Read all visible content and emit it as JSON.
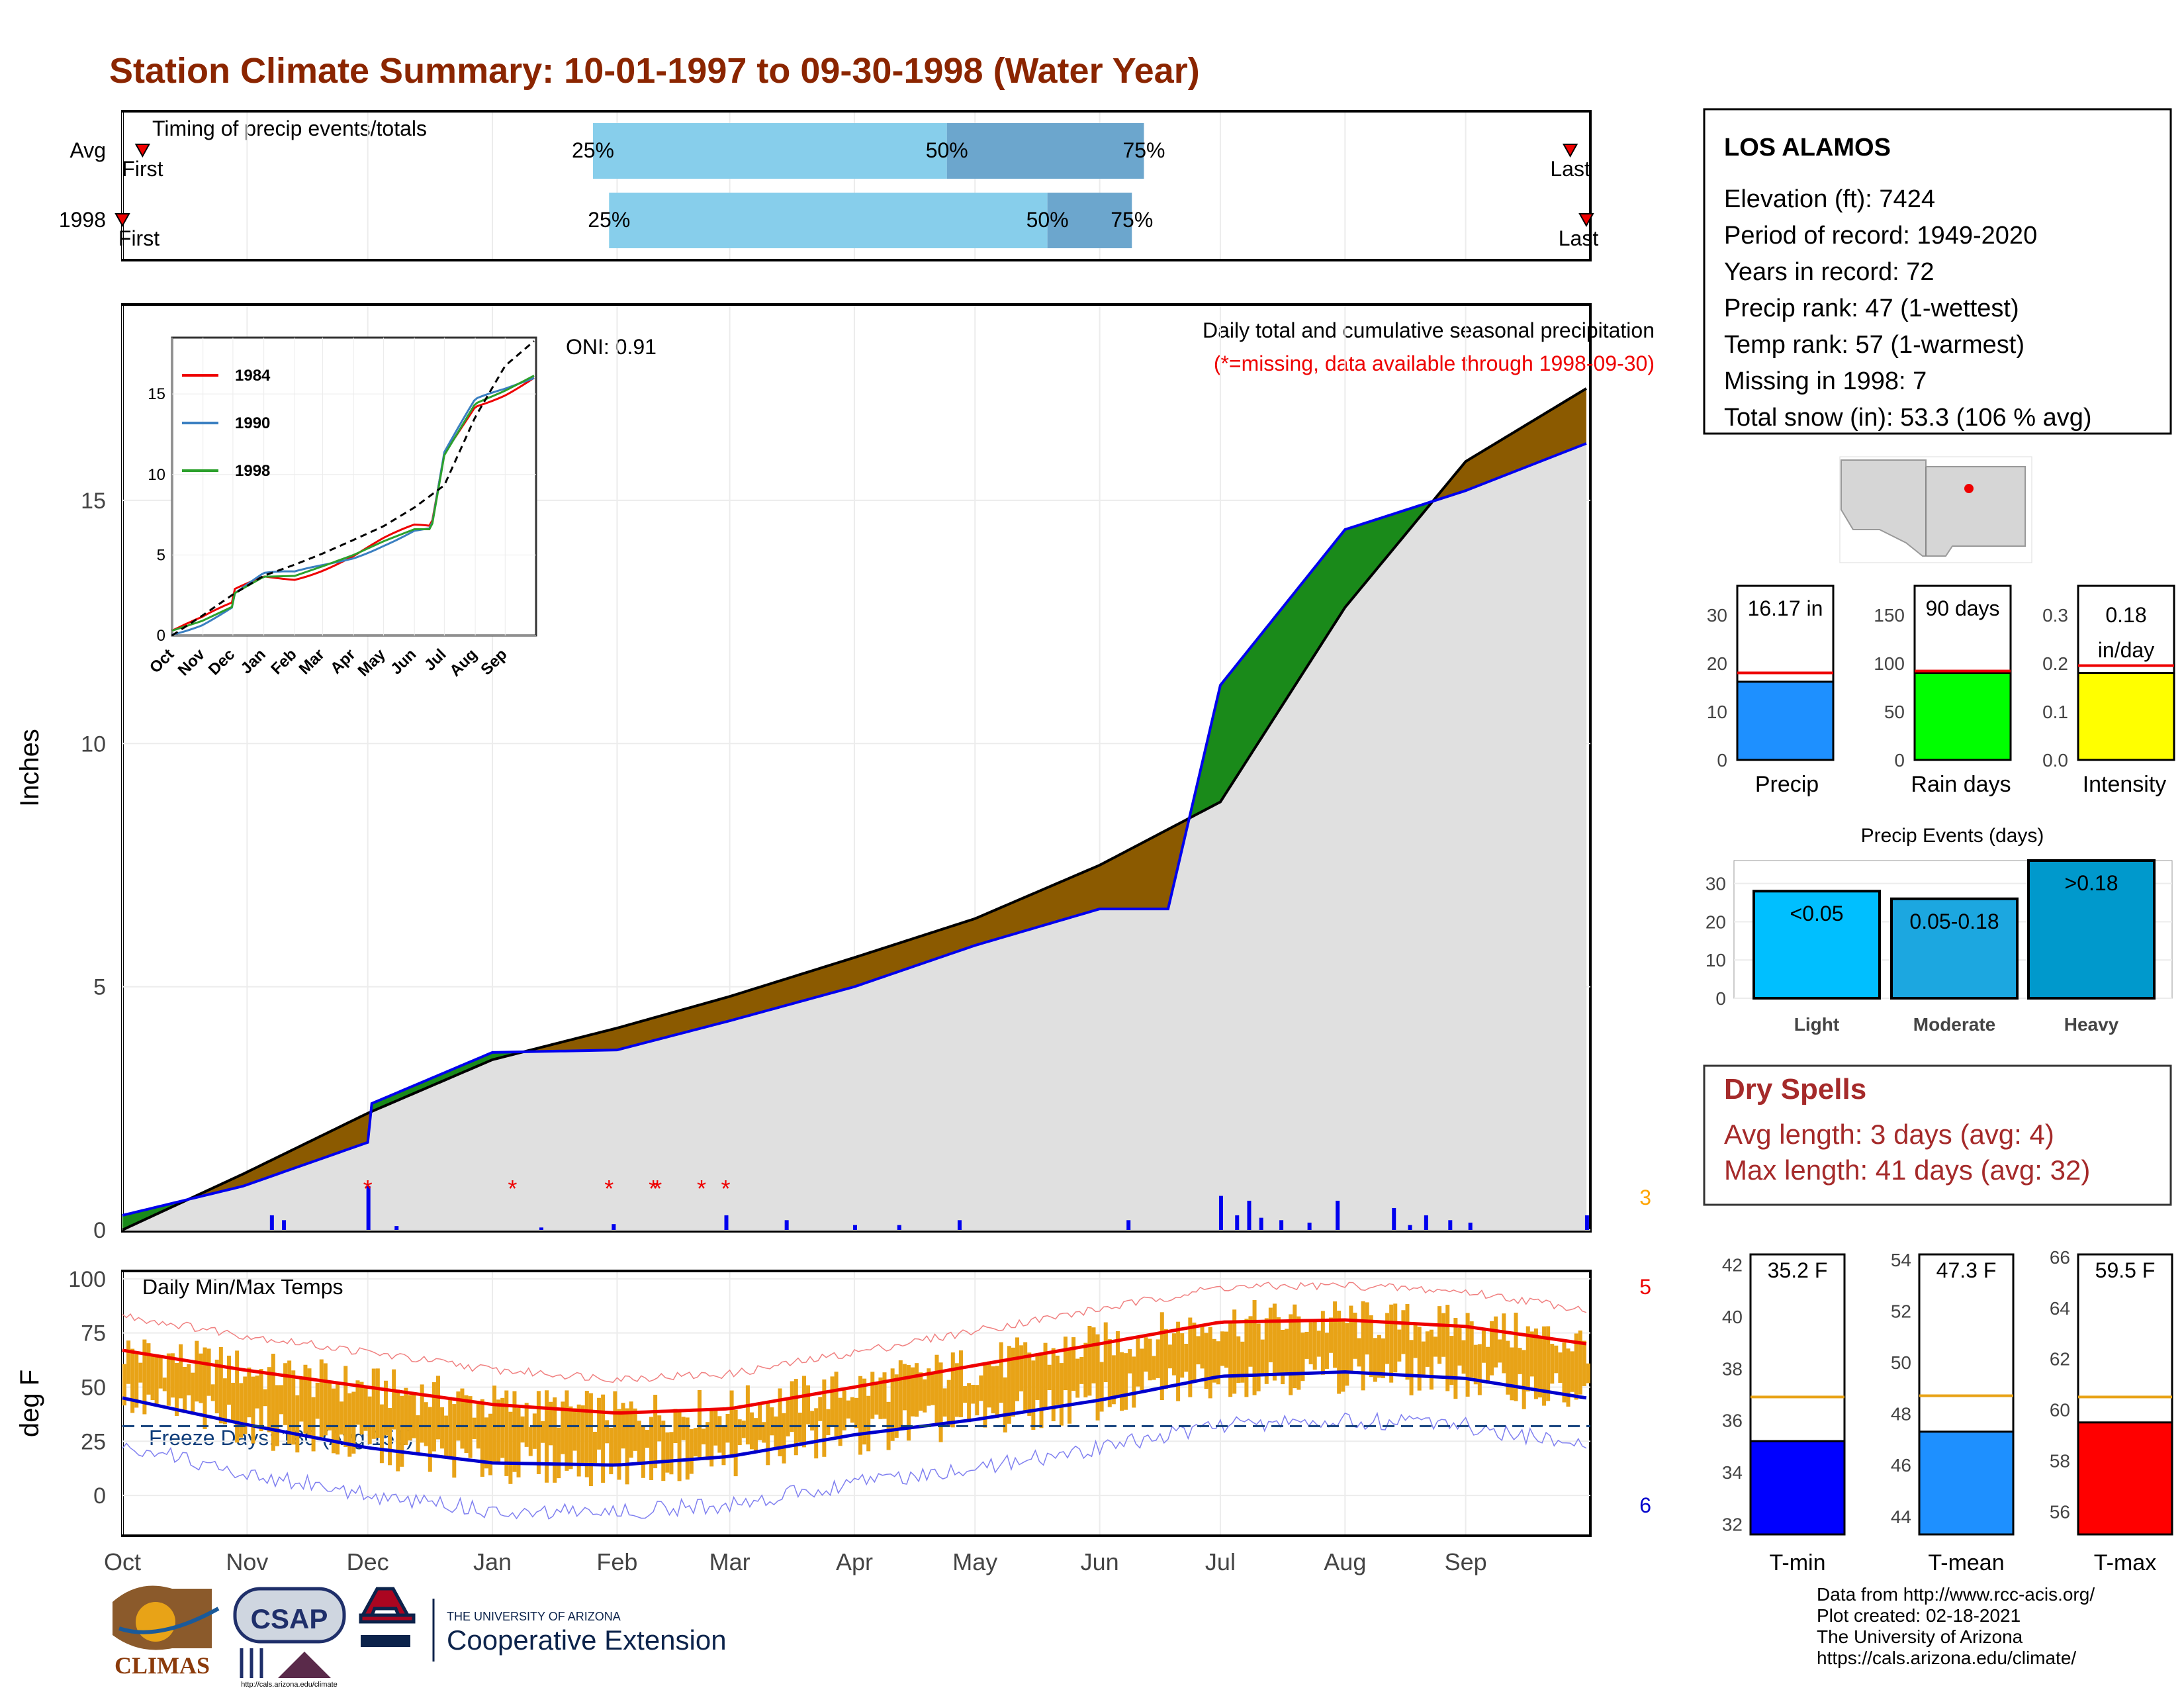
{
  "title": "Station Climate Summary: 10-01-1997 to 09-30-1998 (Water Year)",
  "colors": {
    "title": "#8B2500",
    "brown": "#8B5A00",
    "green": "#1a8a1a",
    "blue": "#0000EE",
    "lightblue": "#87CEEB",
    "midblue": "#6CA6CD",
    "orange": "#E8A317",
    "red": "#EE0000",
    "drySpell": "#A52A2A"
  },
  "months": [
    "Oct",
    "Nov",
    "Dec",
    "Jan",
    "Feb",
    "Mar",
    "Apr",
    "May",
    "Jun",
    "Jul",
    "Aug",
    "Sep"
  ],
  "timing": {
    "label": "Timing of precip events/totals",
    "rows": [
      {
        "name": "Avg",
        "first": "First",
        "last": "Last",
        "first_day": 5,
        "last_day": 360,
        "p25": "25%",
        "p50": "50%",
        "p75": "75%",
        "d25": 117,
        "d50": 205,
        "d75": 254
      },
      {
        "name": "1998",
        "first": "First",
        "last": "Last",
        "first_day": 0,
        "last_day": 364,
        "p25": "25%",
        "p50": "50%",
        "p75": "75%",
        "d25": 121,
        "d50": 230,
        "d75": 251
      }
    ]
  },
  "station": {
    "name": "LOS ALAMOS",
    "lines": [
      "Elevation (ft): 7424",
      "Period of record: 1949-2020",
      "Years in record: 72",
      "Precip rank: 47 (1-wettest)",
      "Temp rank: 57 (1-warmest)",
      "Missing in 1998: 7",
      "Total snow (in): 53.3 (106 % avg)"
    ]
  },
  "precip_panel": {
    "ylabel": "Inches",
    "title": "Daily total and cumulative seasonal precipitation",
    "missing_note": "(*=missing, data available through 1998-09-30)",
    "oni": "ONI: 0.91",
    "corner_count": "3",
    "yticks": [
      0,
      5,
      10,
      15
    ],
    "ylim": [
      0,
      19
    ]
  },
  "inset": {
    "legend": [
      "1984",
      "1990",
      "1998"
    ],
    "legend_colors": [
      "#EE0000",
      "#3A7FC1",
      "#2CA02C"
    ],
    "yticks": [
      0,
      5,
      10,
      15
    ],
    "months": [
      "Oct",
      "Nov",
      "Dec",
      "Jan",
      "Feb",
      "Mar",
      "Apr",
      "May",
      "Jun",
      "Jul",
      "Aug",
      "Sep"
    ]
  },
  "temp_panel": {
    "title": "Daily Min/Max Temps",
    "ylabel": "deg F",
    "freeze": "Freeze Days: 180 (Avg:151)",
    "count_max": "5",
    "count_min": "6",
    "yticks": [
      0,
      25,
      50,
      75,
      100
    ],
    "ylim": [
      -18,
      103
    ]
  },
  "small_bars": {
    "precip": {
      "label": "Precip",
      "value_label": "16.17 in",
      "value": 16.17,
      "avg": 18.0,
      "ylim": [
        0,
        36
      ],
      "yticks": [
        0,
        10,
        20,
        30
      ],
      "color": "#1E90FF"
    },
    "rain_days": {
      "label": "Rain days",
      "value_label": "90 days",
      "value": 90,
      "avg": 92,
      "ylim": [
        0,
        180
      ],
      "yticks": [
        0,
        50,
        100,
        150
      ],
      "color": "#00FF00"
    },
    "intensity": {
      "label": "Intensity",
      "value_label_1": "0.18",
      "value_label_2": "in/day",
      "value": 0.18,
      "avg": 0.195,
      "ylim": [
        0,
        0.36
      ],
      "yticks": [
        "0.0",
        "0.1",
        "0.2",
        "0.3"
      ],
      "color": "#FFFF00"
    }
  },
  "precip_events": {
    "title": "Precip Events (days)",
    "yticks": [
      0,
      10,
      20,
      30
    ],
    "ylim": [
      0,
      36
    ],
    "bars": [
      {
        "label": "Light",
        "value_label": "<0.05",
        "value": 28,
        "color": "#00BFFF"
      },
      {
        "label": "Moderate",
        "value_label": "0.05-0.18",
        "value": 26,
        "color": "#1CA7E0"
      },
      {
        "label": "Heavy",
        "value_label": ">0.18",
        "value": 36,
        "color": "#0099CC"
      }
    ]
  },
  "dry_spells": {
    "title": "Dry Spells",
    "avg": "Avg length: 3 days (avg: 4)",
    "max": "Max length: 41 days (avg: 32)"
  },
  "temp_bars": [
    {
      "label": "T-min",
      "value_label": "35.2 F",
      "value": 35.2,
      "avg": 36.9,
      "ylim": [
        31.6,
        42.4
      ],
      "yticks": [
        32,
        34,
        36,
        38,
        40,
        42
      ],
      "color": "#0000FF"
    },
    {
      "label": "T-mean",
      "value_label": "47.3 F",
      "value": 47.3,
      "avg": 48.7,
      "ylim": [
        43.3,
        54.2
      ],
      "yticks": [
        44,
        46,
        48,
        50,
        52,
        54
      ],
      "color": "#1E90FF"
    },
    {
      "label": "T-max",
      "value_label": "59.5 F",
      "value": 59.5,
      "avg": 60.5,
      "ylim": [
        55.1,
        66.1
      ],
      "yticks": [
        56,
        58,
        60,
        62,
        64,
        66
      ],
      "color": "#FF0000"
    }
  ],
  "footer": {
    "lines": [
      "Data from http://www.rcc-acis.org/",
      "Plot created: 02-18-2021",
      "The University of Arizona",
      "https://cals.arizona.edu/climate/"
    ],
    "logo1": "CLIMAS",
    "logo2": "CSAP",
    "logo2_url": "http://cals.arizona.edu/climate",
    "logo3_top": "THE UNIVERSITY OF ARIZONA",
    "logo3_main": "Cooperative Extension"
  },
  "chart_data": {
    "type": "area",
    "title": "Daily total and cumulative seasonal precipitation",
    "ylabel": "Inches",
    "ylim": [
      0,
      19
    ],
    "series": [
      {
        "name": "cumulative",
        "x": [
          0,
          30,
          61,
          62,
          92,
          123,
          151,
          182,
          212,
          243,
          260,
          273,
          304,
          334,
          364
        ],
        "values": [
          0.3,
          0.9,
          1.8,
          2.6,
          3.65,
          3.7,
          4.3,
          5.0,
          5.85,
          6.6,
          6.6,
          11.2,
          14.4,
          15.2,
          16.17
        ]
      },
      {
        "x": [
          0,
          30,
          61,
          92,
          123,
          151,
          182,
          212,
          243,
          273,
          304,
          334,
          364
        ],
        "values": [
          0.0,
          1.15,
          2.4,
          3.5,
          4.15,
          4.8,
          5.6,
          6.4,
          7.5,
          8.8,
          12.8,
          15.8,
          17.3
        ]
      }
    ],
    "daily_bars": [
      {
        "x": 37,
        "v": 0.3
      },
      {
        "x": 40,
        "v": 0.2
      },
      {
        "x": 61,
        "v": 0.9
      },
      {
        "x": 68,
        "v": 0.08
      },
      {
        "x": 104,
        "v": 0.05
      },
      {
        "x": 122,
        "v": 0.12
      },
      {
        "x": 150,
        "v": 0.3
      },
      {
        "x": 165,
        "v": 0.2
      },
      {
        "x": 182,
        "v": 0.1
      },
      {
        "x": 193,
        "v": 0.1
      },
      {
        "x": 208,
        "v": 0.2
      },
      {
        "x": 250,
        "v": 0.2
      },
      {
        "x": 273,
        "v": 0.7
      },
      {
        "x": 277,
        "v": 0.3
      },
      {
        "x": 280,
        "v": 0.6
      },
      {
        "x": 283,
        "v": 0.25
      },
      {
        "x": 288,
        "v": 0.2
      },
      {
        "x": 295,
        "v": 0.15
      },
      {
        "x": 302,
        "v": 0.6
      },
      {
        "x": 316,
        "v": 0.45
      },
      {
        "x": 320,
        "v": 0.1
      },
      {
        "x": 324,
        "v": 0.3
      },
      {
        "x": 330,
        "v": 0.2
      },
      {
        "x": 335,
        "v": 0.15
      },
      {
        "x": 364,
        "v": 0.3
      }
    ],
    "missing_days": [
      61,
      97,
      121,
      132,
      133,
      144,
      150
    ],
    "temp": {
      "ylim": [
        -18,
        103
      ],
      "tmax_avg": {
        "x": [
          0,
          30,
          61,
          92,
          123,
          151,
          182,
          212,
          243,
          273,
          304,
          334,
          364
        ],
        "values": [
          67,
          58,
          50,
          42,
          38,
          40,
          50,
          60,
          70,
          80,
          81,
          78,
          70
        ]
      },
      "tmin_avg": {
        "x": [
          0,
          30,
          61,
          92,
          123,
          151,
          182,
          212,
          243,
          273,
          304,
          334,
          364
        ],
        "values": [
          45,
          33,
          22,
          15,
          14,
          18,
          28,
          35,
          44,
          55,
          57,
          54,
          45
        ]
      },
      "freeze_line": 32
    }
  }
}
